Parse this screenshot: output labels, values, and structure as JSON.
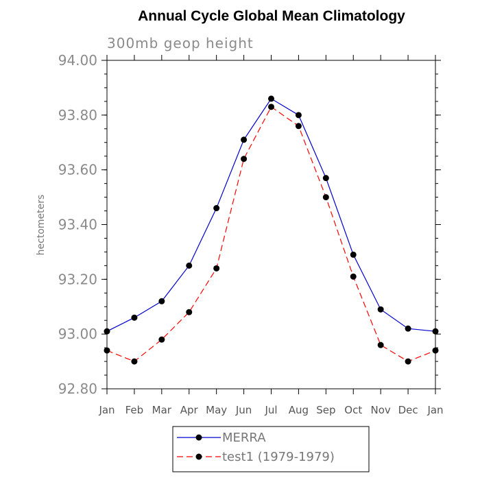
{
  "chart_data": {
    "type": "line",
    "title": "Annual Cycle Global Mean Climatology",
    "subtitle": "300mb geop height",
    "xlabel": "",
    "ylabel": "hectometers",
    "categories": [
      "Jan",
      "Feb",
      "Mar",
      "Apr",
      "May",
      "Jun",
      "Jul",
      "Aug",
      "Sep",
      "Oct",
      "Nov",
      "Dec",
      "Jan"
    ],
    "ylim": [
      92.8,
      94.0
    ],
    "yticks": [
      "92.80",
      "93.00",
      "93.20",
      "93.40",
      "93.60",
      "93.80",
      "94.00"
    ],
    "grid": false,
    "legend_position": "bottom-center",
    "series": [
      {
        "name": "MERRA",
        "color": "#0000cc",
        "dash": "solid",
        "values": [
          93.01,
          93.06,
          93.12,
          93.25,
          93.46,
          93.71,
          93.86,
          93.8,
          93.57,
          93.29,
          93.09,
          93.02,
          93.01
        ]
      },
      {
        "name": "test1 (1979-1979)",
        "color": "#ff0000",
        "dash": "dashed",
        "values": [
          92.94,
          92.9,
          92.98,
          93.08,
          93.24,
          93.64,
          93.83,
          93.76,
          93.5,
          93.21,
          92.96,
          92.9,
          92.94
        ]
      }
    ]
  }
}
